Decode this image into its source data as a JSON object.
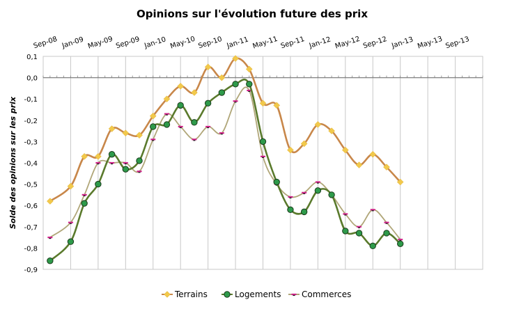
{
  "chart_data": {
    "type": "line",
    "title": "Opinions sur l'évolution future des prix",
    "ylabel": "Solde des opinions sur les prix",
    "xlabel": "",
    "ylim": [
      -0.9,
      0.1
    ],
    "y_ticks": [
      "0,1",
      "0,0",
      "-0,1",
      "-0,2",
      "-0,3",
      "-0,4",
      "-0,5",
      "-0,6",
      "-0,7",
      "-0,8",
      "-0,9"
    ],
    "x_ticks": [
      "Sep-08",
      "Jan-09",
      "May-09",
      "Sep-09",
      "Jan-10",
      "May-10",
      "Sep-10",
      "Jan-11",
      "May-11",
      "Sep-11",
      "Jan-12",
      "May-12",
      "Sep-12",
      "Jan-13",
      "May-13",
      "Sep-13"
    ],
    "grid": "vertical",
    "legend_position": "bottom",
    "series": [
      {
        "name": "Terrains",
        "color": "#c8874a",
        "marker": "diamond",
        "marker_color": "#f2c94c",
        "points": [
          [
            "2008-10",
            -0.58
          ],
          [
            "2009-01",
            -0.51
          ],
          [
            "2009-03",
            -0.37
          ],
          [
            "2009-05",
            -0.37
          ],
          [
            "2009-07",
            -0.24
          ],
          [
            "2009-09",
            -0.26
          ],
          [
            "2009-11",
            -0.27
          ],
          [
            "2010-01",
            -0.18
          ],
          [
            "2010-03",
            -0.1
          ],
          [
            "2010-05",
            -0.04
          ],
          [
            "2010-07",
            -0.07
          ],
          [
            "2010-09",
            0.05
          ],
          [
            "2010-11",
            0.0
          ],
          [
            "2011-01",
            0.09
          ],
          [
            "2011-03",
            0.04
          ],
          [
            "2011-05",
            -0.12
          ],
          [
            "2011-07",
            -0.13
          ],
          [
            "2011-09",
            -0.34
          ],
          [
            "2011-11",
            -0.31
          ],
          [
            "2012-01",
            -0.22
          ],
          [
            "2012-03",
            -0.25
          ],
          [
            "2012-05",
            -0.34
          ],
          [
            "2012-07",
            -0.41
          ],
          [
            "2012-09",
            -0.36
          ],
          [
            "2012-11",
            -0.42
          ],
          [
            "2013-01",
            -0.49
          ]
        ]
      },
      {
        "name": "Logements",
        "color": "#5a7a2c",
        "marker": "circle",
        "marker_color": "#2e9a4a",
        "points": [
          [
            "2008-10",
            -0.86
          ],
          [
            "2009-01",
            -0.77
          ],
          [
            "2009-03",
            -0.59
          ],
          [
            "2009-05",
            -0.5
          ],
          [
            "2009-07",
            -0.36
          ],
          [
            "2009-09",
            -0.43
          ],
          [
            "2009-11",
            -0.39
          ],
          [
            "2010-01",
            -0.23
          ],
          [
            "2010-03",
            -0.22
          ],
          [
            "2010-05",
            -0.13
          ],
          [
            "2010-07",
            -0.21
          ],
          [
            "2010-09",
            -0.12
          ],
          [
            "2010-11",
            -0.07
          ],
          [
            "2011-01",
            -0.03
          ],
          [
            "2011-03",
            -0.03
          ],
          [
            "2011-05",
            -0.3
          ],
          [
            "2011-07",
            -0.49
          ],
          [
            "2011-09",
            -0.62
          ],
          [
            "2011-11",
            -0.63
          ],
          [
            "2012-01",
            -0.53
          ],
          [
            "2012-03",
            -0.55
          ],
          [
            "2012-05",
            -0.72
          ],
          [
            "2012-07",
            -0.73
          ],
          [
            "2012-09",
            -0.79
          ],
          [
            "2012-11",
            -0.73
          ],
          [
            "2013-01",
            -0.78
          ]
        ]
      },
      {
        "name": "Commerces",
        "color": "#b0a678",
        "marker": "dash",
        "marker_color": "#d0248a",
        "points": [
          [
            "2008-10",
            -0.75
          ],
          [
            "2009-01",
            -0.68
          ],
          [
            "2009-03",
            -0.55
          ],
          [
            "2009-05",
            -0.4
          ],
          [
            "2009-07",
            -0.4
          ],
          [
            "2009-09",
            -0.4
          ],
          [
            "2009-11",
            -0.44
          ],
          [
            "2010-01",
            -0.29
          ],
          [
            "2010-03",
            -0.17
          ],
          [
            "2010-05",
            -0.23
          ],
          [
            "2010-07",
            -0.29
          ],
          [
            "2010-09",
            -0.23
          ],
          [
            "2010-11",
            -0.26
          ],
          [
            "2011-01",
            -0.11
          ],
          [
            "2011-03",
            -0.06
          ],
          [
            "2011-05",
            -0.37
          ],
          [
            "2011-07",
            -0.5
          ],
          [
            "2011-09",
            -0.56
          ],
          [
            "2011-11",
            -0.54
          ],
          [
            "2012-01",
            -0.49
          ],
          [
            "2012-03",
            -0.55
          ],
          [
            "2012-05",
            -0.64
          ],
          [
            "2012-07",
            -0.7
          ],
          [
            "2012-09",
            -0.62
          ],
          [
            "2012-11",
            -0.68
          ],
          [
            "2013-01",
            -0.76
          ]
        ]
      }
    ]
  }
}
